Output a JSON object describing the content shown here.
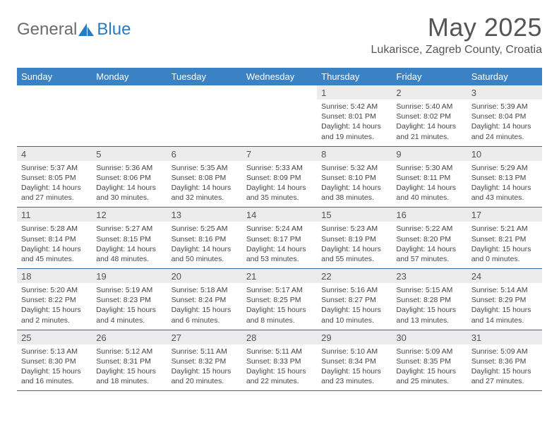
{
  "brand": {
    "word1": "General",
    "word2": "Blue"
  },
  "title": "May 2025",
  "location": "Lukarisce, Zagreb County, Croatia",
  "colors": {
    "header_bg": "#3a82c4",
    "header_text": "#ffffff",
    "rule": "#2a6aa5",
    "daynum_bg": "#ececec",
    "text": "#444444",
    "logo_gray": "#6b6b6b",
    "logo_blue": "#2a7abf"
  },
  "day_names": [
    "Sunday",
    "Monday",
    "Tuesday",
    "Wednesday",
    "Thursday",
    "Friday",
    "Saturday"
  ],
  "weeks": [
    [
      null,
      null,
      null,
      null,
      {
        "n": "1",
        "sr": "5:42 AM",
        "ss": "8:01 PM",
        "dl": "14 hours and 19 minutes."
      },
      {
        "n": "2",
        "sr": "5:40 AM",
        "ss": "8:02 PM",
        "dl": "14 hours and 21 minutes."
      },
      {
        "n": "3",
        "sr": "5:39 AM",
        "ss": "8:04 PM",
        "dl": "14 hours and 24 minutes."
      }
    ],
    [
      {
        "n": "4",
        "sr": "5:37 AM",
        "ss": "8:05 PM",
        "dl": "14 hours and 27 minutes."
      },
      {
        "n": "5",
        "sr": "5:36 AM",
        "ss": "8:06 PM",
        "dl": "14 hours and 30 minutes."
      },
      {
        "n": "6",
        "sr": "5:35 AM",
        "ss": "8:08 PM",
        "dl": "14 hours and 32 minutes."
      },
      {
        "n": "7",
        "sr": "5:33 AM",
        "ss": "8:09 PM",
        "dl": "14 hours and 35 minutes."
      },
      {
        "n": "8",
        "sr": "5:32 AM",
        "ss": "8:10 PM",
        "dl": "14 hours and 38 minutes."
      },
      {
        "n": "9",
        "sr": "5:30 AM",
        "ss": "8:11 PM",
        "dl": "14 hours and 40 minutes."
      },
      {
        "n": "10",
        "sr": "5:29 AM",
        "ss": "8:13 PM",
        "dl": "14 hours and 43 minutes."
      }
    ],
    [
      {
        "n": "11",
        "sr": "5:28 AM",
        "ss": "8:14 PM",
        "dl": "14 hours and 45 minutes."
      },
      {
        "n": "12",
        "sr": "5:27 AM",
        "ss": "8:15 PM",
        "dl": "14 hours and 48 minutes."
      },
      {
        "n": "13",
        "sr": "5:25 AM",
        "ss": "8:16 PM",
        "dl": "14 hours and 50 minutes."
      },
      {
        "n": "14",
        "sr": "5:24 AM",
        "ss": "8:17 PM",
        "dl": "14 hours and 53 minutes."
      },
      {
        "n": "15",
        "sr": "5:23 AM",
        "ss": "8:19 PM",
        "dl": "14 hours and 55 minutes."
      },
      {
        "n": "16",
        "sr": "5:22 AM",
        "ss": "8:20 PM",
        "dl": "14 hours and 57 minutes."
      },
      {
        "n": "17",
        "sr": "5:21 AM",
        "ss": "8:21 PM",
        "dl": "15 hours and 0 minutes."
      }
    ],
    [
      {
        "n": "18",
        "sr": "5:20 AM",
        "ss": "8:22 PM",
        "dl": "15 hours and 2 minutes."
      },
      {
        "n": "19",
        "sr": "5:19 AM",
        "ss": "8:23 PM",
        "dl": "15 hours and 4 minutes."
      },
      {
        "n": "20",
        "sr": "5:18 AM",
        "ss": "8:24 PM",
        "dl": "15 hours and 6 minutes."
      },
      {
        "n": "21",
        "sr": "5:17 AM",
        "ss": "8:25 PM",
        "dl": "15 hours and 8 minutes."
      },
      {
        "n": "22",
        "sr": "5:16 AM",
        "ss": "8:27 PM",
        "dl": "15 hours and 10 minutes."
      },
      {
        "n": "23",
        "sr": "5:15 AM",
        "ss": "8:28 PM",
        "dl": "15 hours and 13 minutes."
      },
      {
        "n": "24",
        "sr": "5:14 AM",
        "ss": "8:29 PM",
        "dl": "15 hours and 14 minutes."
      }
    ],
    [
      {
        "n": "25",
        "sr": "5:13 AM",
        "ss": "8:30 PM",
        "dl": "15 hours and 16 minutes."
      },
      {
        "n": "26",
        "sr": "5:12 AM",
        "ss": "8:31 PM",
        "dl": "15 hours and 18 minutes."
      },
      {
        "n": "27",
        "sr": "5:11 AM",
        "ss": "8:32 PM",
        "dl": "15 hours and 20 minutes."
      },
      {
        "n": "28",
        "sr": "5:11 AM",
        "ss": "8:33 PM",
        "dl": "15 hours and 22 minutes."
      },
      {
        "n": "29",
        "sr": "5:10 AM",
        "ss": "8:34 PM",
        "dl": "15 hours and 23 minutes."
      },
      {
        "n": "30",
        "sr": "5:09 AM",
        "ss": "8:35 PM",
        "dl": "15 hours and 25 minutes."
      },
      {
        "n": "31",
        "sr": "5:09 AM",
        "ss": "8:36 PM",
        "dl": "15 hours and 27 minutes."
      }
    ]
  ],
  "labels": {
    "sunrise": "Sunrise: ",
    "sunset": "Sunset: ",
    "daylight": "Daylight: "
  }
}
